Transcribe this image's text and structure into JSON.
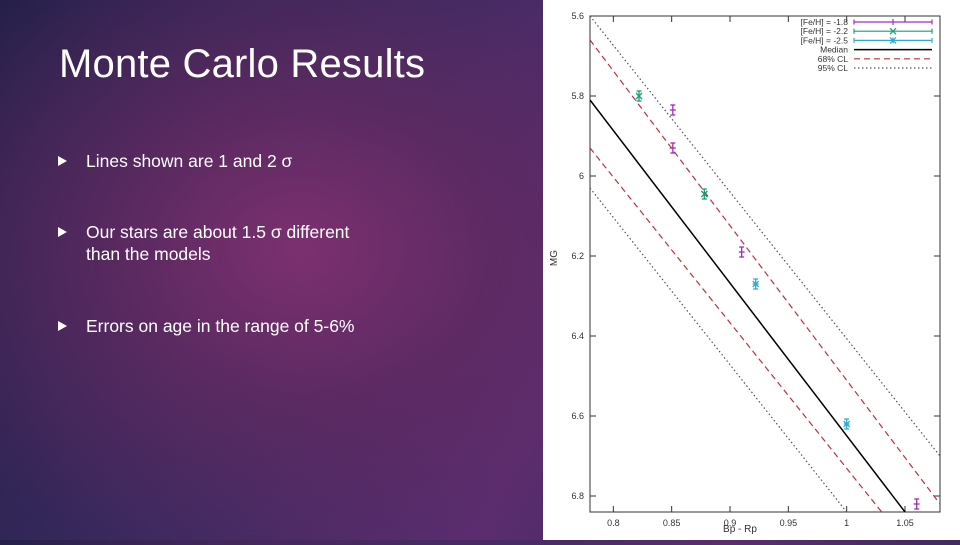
{
  "slide": {
    "title": "Monte Carlo Results",
    "bullets": [
      "Lines shown are 1 and 2 σ",
      "Our stars are about 1.5 σ different than the models",
      "Errors on age in the range of 5-6%"
    ]
  },
  "chart_data": {
    "type": "scatter",
    "xlabel": "Bp - Rp",
    "ylabel": "MG",
    "xlim": [
      0.78,
      1.08
    ],
    "ylim": [
      5.6,
      6.84
    ],
    "y_inverted": true,
    "x_ticks": [
      "0.8",
      "0.85",
      "0.9",
      "0.95",
      "1",
      "1.05"
    ],
    "y_ticks": [
      "5.6",
      "5.8",
      "6",
      "6.2",
      "6.4",
      "6.6",
      "6.8"
    ],
    "legend_position": "top-right",
    "series": [
      {
        "name": "[Fe/H] = -1.8",
        "color": "#a02dbd",
        "marker": "plus",
        "points": [
          {
            "x": 0.851,
            "y": 5.835
          },
          {
            "x": 0.851,
            "y": 5.93
          },
          {
            "x": 0.91,
            "y": 6.19
          },
          {
            "x": 1.06,
            "y": 6.82
          }
        ]
      },
      {
        "name": "[Fe/H] = -2.2",
        "color": "#1a9e76",
        "marker": "cross",
        "points": [
          {
            "x": 0.822,
            "y": 5.8
          },
          {
            "x": 0.878,
            "y": 6.045
          }
        ]
      },
      {
        "name": "[Fe/H] = -2.5",
        "color": "#33aacc",
        "marker": "star",
        "points": [
          {
            "x": 0.922,
            "y": 6.27
          },
          {
            "x": 1.0,
            "y": 6.62
          }
        ]
      }
    ],
    "lines": [
      {
        "name": "Median",
        "style": "solid",
        "color": "#000000",
        "points": [
          [
            0.78,
            5.81
          ],
          [
            1.05,
            6.84
          ]
        ]
      },
      {
        "name": "68% CL",
        "style": "dashed",
        "color": "#c0303a",
        "points": [
          [
            0.78,
            5.66
          ],
          [
            1.08,
            6.82
          ]
        ]
      },
      {
        "name": "68% CL",
        "style": "dashed",
        "color": "#c0303a",
        "points": [
          [
            0.78,
            5.93
          ],
          [
            1.03,
            6.84
          ]
        ]
      },
      {
        "name": "95% CL",
        "style": "dotted",
        "color": "#555555",
        "points": [
          [
            0.78,
            5.6
          ],
          [
            1.08,
            6.7
          ]
        ]
      },
      {
        "name": "95% CL",
        "style": "dotted",
        "color": "#555555",
        "points": [
          [
            0.78,
            6.03
          ],
          [
            1.0,
            6.84
          ]
        ]
      }
    ],
    "legend": [
      {
        "label": "[Fe/H] = -1.8",
        "color": "#a02dbd",
        "kind": "plus"
      },
      {
        "label": "[Fe/H] = -2.2",
        "color": "#1a9e76",
        "kind": "cross"
      },
      {
        "label": "[Fe/H] = -2.5",
        "color": "#33aacc",
        "kind": "star"
      },
      {
        "label": "Median",
        "color": "#000000",
        "kind": "solid"
      },
      {
        "label": "68% CL",
        "color": "#c0303a",
        "kind": "dashed"
      },
      {
        "label": "95% CL",
        "color": "#555555",
        "kind": "dotted"
      }
    ]
  }
}
